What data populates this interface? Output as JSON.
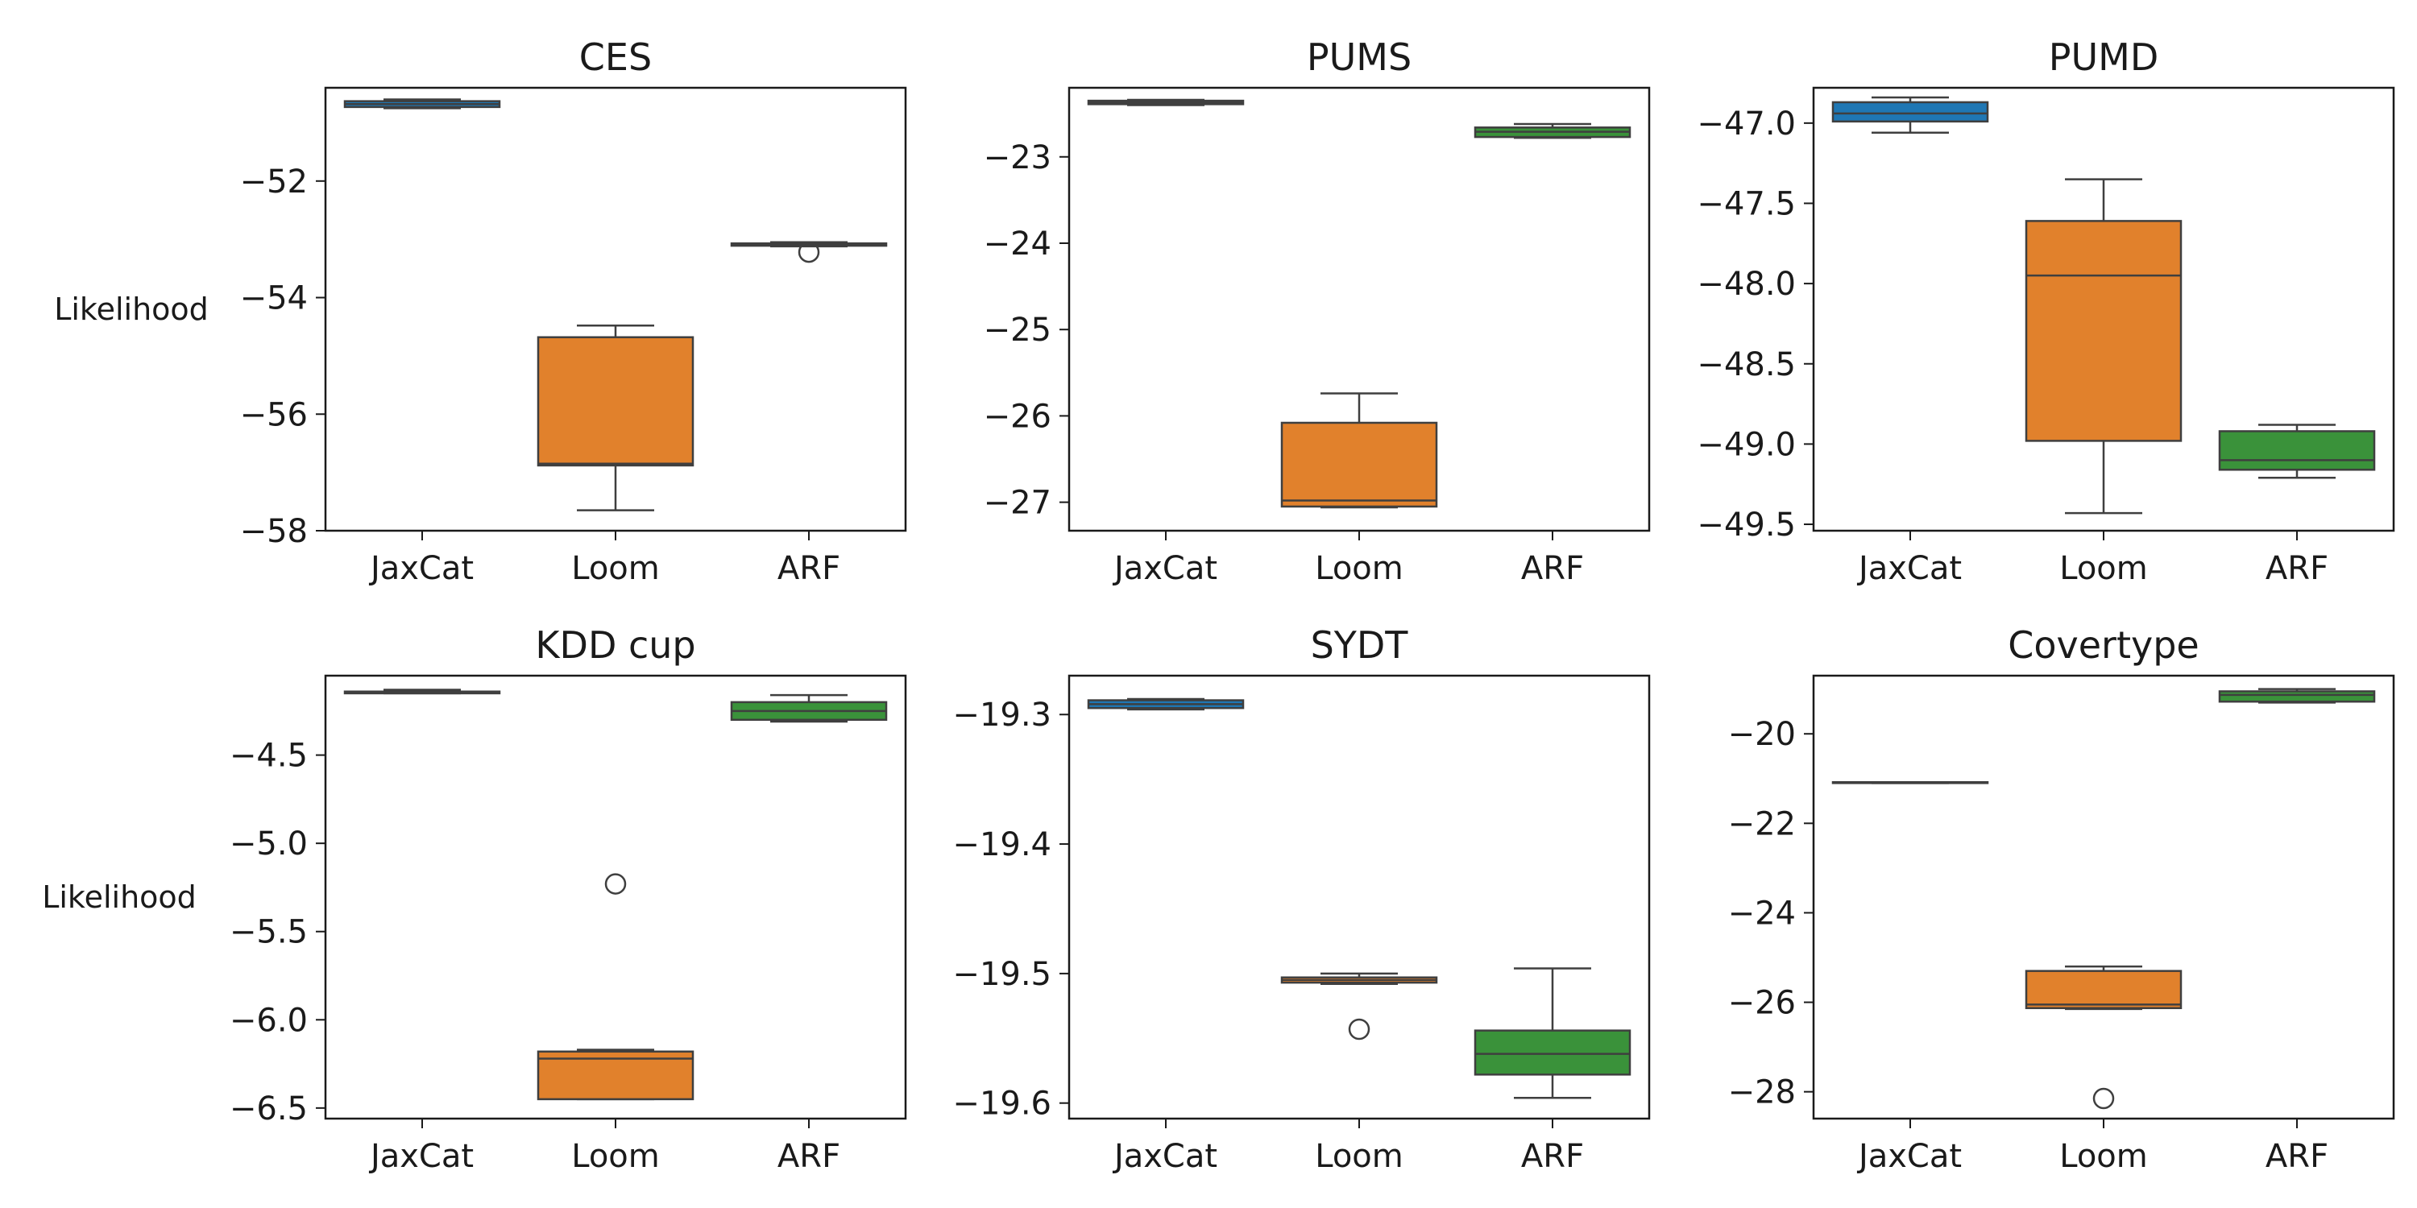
{
  "chart_data": [
    {
      "type": "box",
      "title": "CES",
      "ylabel": "Likelihood",
      "ylim": [
        -58,
        -50.4
      ],
      "yticks": [
        -52,
        -54,
        -56,
        -58
      ],
      "categories": [
        "JaxCat",
        "Loom",
        "ARF"
      ],
      "boxes": [
        {
          "category": "JaxCat",
          "whisker_low": -50.75,
          "q1": -50.73,
          "median": -50.68,
          "q3": -50.63,
          "whisker_high": -50.6,
          "outliers": []
        },
        {
          "category": "Loom",
          "whisker_low": -57.65,
          "q1": -56.88,
          "median": -56.85,
          "q3": -54.68,
          "whisker_high": -54.48,
          "outliers": []
        },
        {
          "category": "ARF",
          "whisker_low": -53.12,
          "q1": -53.11,
          "median": -53.09,
          "q3": -53.07,
          "whisker_high": -53.05,
          "outliers": [
            -53.22
          ]
        }
      ]
    },
    {
      "type": "box",
      "title": "PUMS",
      "ylabel": "",
      "ylim": [
        -27.33,
        -22.2
      ],
      "yticks": [
        -23,
        -24,
        -25,
        -26,
        -27
      ],
      "categories": [
        "JaxCat",
        "Loom",
        "ARF"
      ],
      "boxes": [
        {
          "category": "JaxCat",
          "whisker_low": -22.4,
          "q1": -22.39,
          "median": -22.37,
          "q3": -22.35,
          "whisker_high": -22.34,
          "outliers": []
        },
        {
          "category": "Loom",
          "whisker_low": -27.06,
          "q1": -27.05,
          "median": -26.98,
          "q3": -26.08,
          "whisker_high": -25.74,
          "outliers": []
        },
        {
          "category": "ARF",
          "whisker_low": -22.78,
          "q1": -22.77,
          "median": -22.71,
          "q3": -22.66,
          "whisker_high": -22.62,
          "outliers": []
        }
      ]
    },
    {
      "type": "box",
      "title": "PUMD",
      "ylabel": "",
      "ylim": [
        -49.54,
        -46.78
      ],
      "yticks": [
        -47.0,
        -47.5,
        -48.0,
        -48.5,
        -49.0,
        -49.5
      ],
      "categories": [
        "JaxCat",
        "Loom",
        "ARF"
      ],
      "boxes": [
        {
          "category": "JaxCat",
          "whisker_low": -47.06,
          "q1": -46.99,
          "median": -46.94,
          "q3": -46.87,
          "whisker_high": -46.84,
          "outliers": []
        },
        {
          "category": "Loom",
          "whisker_low": -49.43,
          "q1": -48.98,
          "median": -47.95,
          "q3": -47.61,
          "whisker_high": -47.35,
          "outliers": []
        },
        {
          "category": "ARF",
          "whisker_low": -49.21,
          "q1": -49.16,
          "median": -49.1,
          "q3": -48.92,
          "whisker_high": -48.88,
          "outliers": []
        }
      ]
    },
    {
      "type": "box",
      "title": "KDD cup",
      "ylabel": "Likelihood",
      "ylim": [
        -6.56,
        -4.05
      ],
      "yticks": [
        -4.5,
        -5.0,
        -5.5,
        -6.0,
        -6.5
      ],
      "categories": [
        "JaxCat",
        "Loom",
        "ARF"
      ],
      "boxes": [
        {
          "category": "JaxCat",
          "whisker_low": -4.15,
          "q1": -4.15,
          "median": -4.14,
          "q3": -4.14,
          "whisker_high": -4.13,
          "outliers": []
        },
        {
          "category": "Loom",
          "whisker_low": -6.45,
          "q1": -6.45,
          "median": -6.22,
          "q3": -6.18,
          "whisker_high": -6.17,
          "outliers": [
            -5.23
          ]
        },
        {
          "category": "ARF",
          "whisker_low": -4.31,
          "q1": -4.3,
          "median": -4.25,
          "q3": -4.2,
          "whisker_high": -4.16,
          "outliers": []
        }
      ]
    },
    {
      "type": "box",
      "title": "SYDT",
      "ylabel": "",
      "ylim": [
        -19.612,
        -19.27
      ],
      "yticks": [
        -19.3,
        -19.4,
        -19.5,
        -19.6
      ],
      "categories": [
        "JaxCat",
        "Loom",
        "ARF"
      ],
      "boxes": [
        {
          "category": "JaxCat",
          "whisker_low": -19.296,
          "q1": -19.295,
          "median": -19.292,
          "q3": -19.289,
          "whisker_high": -19.288,
          "outliers": []
        },
        {
          "category": "Loom",
          "whisker_low": -19.508,
          "q1": -19.507,
          "median": -19.505,
          "q3": -19.503,
          "whisker_high": -19.5,
          "outliers": [
            -19.543
          ]
        },
        {
          "category": "ARF",
          "whisker_low": -19.596,
          "q1": -19.578,
          "median": -19.562,
          "q3": -19.544,
          "whisker_high": -19.496,
          "outliers": []
        }
      ]
    },
    {
      "type": "box",
      "title": "Covertype",
      "ylabel": "",
      "ylim": [
        -28.6,
        -18.7
      ],
      "yticks": [
        -20,
        -22,
        -24,
        -26,
        -28
      ],
      "categories": [
        "JaxCat",
        "Loom",
        "ARF"
      ],
      "boxes": [
        {
          "category": "JaxCat",
          "whisker_low": -21.1,
          "q1": -21.1,
          "median": -21.09,
          "q3": -21.08,
          "whisker_high": -21.08,
          "outliers": []
        },
        {
          "category": "Loom",
          "whisker_low": -26.15,
          "q1": -26.13,
          "median": -26.05,
          "q3": -25.3,
          "whisker_high": -25.2,
          "outliers": [
            -28.15
          ]
        },
        {
          "category": "ARF",
          "whisker_low": -19.3,
          "q1": -19.28,
          "median": -19.13,
          "q3": -19.05,
          "whisker_high": -19.0,
          "outliers": []
        }
      ]
    }
  ],
  "colors": {
    "JaxCat": "#1f77b4",
    "Loom": "#e1812c",
    "ARF": "#3a923a",
    "line": "#3f3f3f",
    "axes": "#1a1a1a"
  }
}
